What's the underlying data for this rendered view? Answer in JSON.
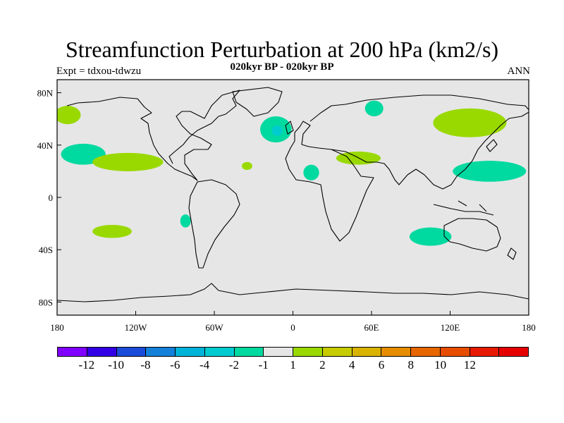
{
  "title": "Streamfunction Perturbation at 200 hPa (km2/s)",
  "subtitle": "020kyr BP - 020kyr BP",
  "left_label": "Expt = tdxou-tdwzu",
  "right_label": "ANN",
  "map": {
    "projection": "cylindrical-equidistant",
    "background": "#e6e6e6",
    "lon_range": [
      -180,
      180
    ],
    "lat_range": [
      -90,
      90
    ],
    "lat_ticks": [
      "80N",
      "40N",
      "0",
      "40S",
      "80S"
    ],
    "lat_tick_values": [
      80,
      40,
      0,
      -40,
      -80
    ],
    "lon_ticks": [
      "180",
      "120W",
      "60W",
      "0",
      "60E",
      "120E",
      "180"
    ],
    "lon_tick_values": [
      -180,
      -120,
      -60,
      0,
      60,
      120,
      180
    ]
  },
  "colorbar": {
    "colors": [
      "#7f00ff",
      "#3300e6",
      "#1a4cd9",
      "#1480d9",
      "#00b3d9",
      "#00ccd0",
      "#00d9a0",
      "#e6e6e6",
      "#99d900",
      "#c6cc00",
      "#d9b300",
      "#e68c00",
      "#e66600",
      "#e64d00",
      "#e61a00",
      "#e60000"
    ],
    "labels": [
      "-12",
      "-10",
      "-8",
      "-6",
      "-4",
      "-2",
      "-1",
      "1",
      "2",
      "4",
      "6",
      "8",
      "10",
      "12"
    ]
  },
  "anomalies": [
    {
      "level": "2",
      "color": "#99d900",
      "lon": -172,
      "lat": 63,
      "rx": 10,
      "ry": 7
    },
    {
      "level": "-2",
      "color": "#00d9a0",
      "lon": -160,
      "lat": 33,
      "rx": 17,
      "ry": 8
    },
    {
      "level": "2",
      "color": "#99d900",
      "lon": -126,
      "lat": 27,
      "rx": 27,
      "ry": 7
    },
    {
      "level": "2",
      "color": "#99d900",
      "lon": -138,
      "lat": -26,
      "rx": 15,
      "ry": 5
    },
    {
      "level": "-2",
      "color": "#00d9a0",
      "lon": -82,
      "lat": -18,
      "rx": 4,
      "ry": 5
    },
    {
      "level": "2",
      "color": "#99d900",
      "lon": -35,
      "lat": 24,
      "rx": 4,
      "ry": 3
    },
    {
      "level": "-2",
      "color": "#00d9a0",
      "lon": -13,
      "lat": 52,
      "rx": 12,
      "ry": 10
    },
    {
      "level": "-4",
      "color": "#00ccd0",
      "lon": -12,
      "lat": 51,
      "rx": 4,
      "ry": 4
    },
    {
      "level": "-2",
      "color": "#00d9a0",
      "lon": 14,
      "lat": 19,
      "rx": 6,
      "ry": 6
    },
    {
      "level": "2",
      "color": "#99d900",
      "lon": 50,
      "lat": 30,
      "rx": 17,
      "ry": 5
    },
    {
      "level": "-2",
      "color": "#00d9a0",
      "lon": 62,
      "lat": 68,
      "rx": 7,
      "ry": 6
    },
    {
      "level": "2",
      "color": "#99d900",
      "lon": 135,
      "lat": 57,
      "rx": 28,
      "ry": 11
    },
    {
      "level": "-2",
      "color": "#00d9a0",
      "lon": 150,
      "lat": 20,
      "rx": 28,
      "ry": 8
    },
    {
      "level": "-2",
      "color": "#00d9a0",
      "lon": 105,
      "lat": -30,
      "rx": 16,
      "ry": 7
    }
  ]
}
